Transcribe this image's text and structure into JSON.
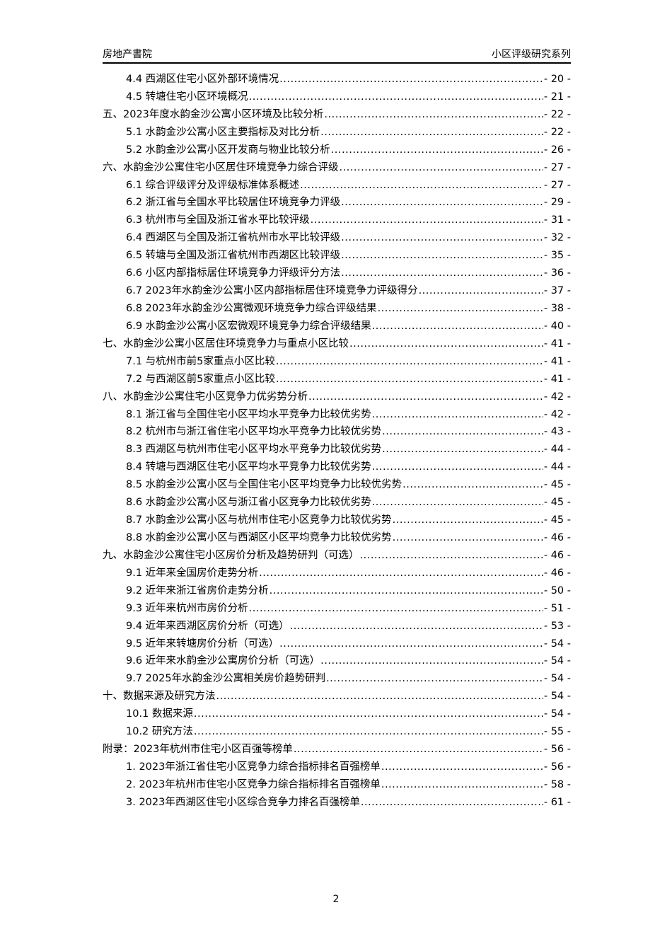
{
  "header": {
    "left": "房地产書院",
    "right": "小区评级研究系列"
  },
  "toc": [
    {
      "level": 2,
      "title": "4.4 西湖区住宅小区外部环境情况",
      "page": "- 20 -"
    },
    {
      "level": 2,
      "title": "4.5 转塘住宅小区环境概况",
      "page": "- 21 -"
    },
    {
      "level": 1,
      "title": "五、2023年度水韵金沙公寓小区环境及比较分析",
      "page": "- 22 -"
    },
    {
      "level": 2,
      "title": "5.1 水韵金沙公寓小区主要指标及对比分析",
      "page": "- 22 -"
    },
    {
      "level": 2,
      "title": "5.2 水韵金沙公寓小区开发商与物业比较分析",
      "page": "- 26 -"
    },
    {
      "level": 1,
      "title": "六、水韵金沙公寓住宅小区居住环境竞争力综合评级",
      "page": "- 27 -"
    },
    {
      "level": 2,
      "title": "6.1 综合评级评分及评级标准体系概述",
      "page": "- 27 -"
    },
    {
      "level": 2,
      "title": "6.2 浙江省与全国水平比较居住环境竞争力评级",
      "page": "- 29 -"
    },
    {
      "level": 2,
      "title": "6.3 杭州市与全国及浙江省水平比较评级",
      "page": "- 31 -"
    },
    {
      "level": 2,
      "title": "6.4 西湖区与全国及浙江省杭州市水平比较评级",
      "page": "- 32 -"
    },
    {
      "level": 2,
      "title": "6.5 转塘与全国及浙江省杭州市西湖区比较评级",
      "page": "- 35 -"
    },
    {
      "level": 2,
      "title": "6.6 小区内部指标居住环境竞争力评级评分方法",
      "page": "- 36 -"
    },
    {
      "level": 2,
      "title": "6.7 2023年水韵金沙公寓小区内部指标居住环境竞争力评级得分",
      "page": "- 37 -"
    },
    {
      "level": 2,
      "title": "6.8 2023年水韵金沙公寓微观环境竞争力综合评级结果",
      "page": "- 38 -"
    },
    {
      "level": 2,
      "title": "6.9 水韵金沙公寓小区宏微观环境竞争力综合评级结果",
      "page": "- 40 -"
    },
    {
      "level": 1,
      "title": "七、水韵金沙公寓小区居住环境竞争力与重点小区比较",
      "page": "- 41 -"
    },
    {
      "level": 2,
      "title": "7.1 与杭州市前5家重点小区比较",
      "page": "- 41 -"
    },
    {
      "level": 2,
      "title": "7.2 与西湖区前5家重点小区比较",
      "page": "- 41 -"
    },
    {
      "level": 1,
      "title": "八、水韵金沙公寓住宅小区竞争力优劣势分析",
      "page": "- 42 -"
    },
    {
      "level": 2,
      "title": "8.1 浙江省与全国住宅小区平均水平竞争力比较优劣势",
      "page": "- 42 -"
    },
    {
      "level": 2,
      "title": "8.2 杭州市与浙江省住宅小区平均水平竞争力比较优劣势",
      "page": "- 43 -"
    },
    {
      "level": 2,
      "title": "8.3 西湖区与杭州市住宅小区平均水平竞争力比较优劣势",
      "page": "- 44 -"
    },
    {
      "level": 2,
      "title": "8.4 转塘与西湖区住宅小区平均水平竞争力比较优劣势",
      "page": "- 44 -"
    },
    {
      "level": 2,
      "title": "8.5 水韵金沙公寓小区与全国住宅小区平均竞争力比较优劣势",
      "page": "- 45 -"
    },
    {
      "level": 2,
      "title": "8.6 水韵金沙公寓小区与浙江省小区竞争力比较优劣势",
      "page": "- 45 -"
    },
    {
      "level": 2,
      "title": "8.7 水韵金沙公寓小区与杭州市住宅小区竞争力比较优劣势",
      "page": "- 45 -"
    },
    {
      "level": 2,
      "title": "8.8 水韵金沙公寓小区与西湖区小区平均竞争力比较优劣势",
      "page": "- 46 -"
    },
    {
      "level": 1,
      "title": "九、水韵金沙公寓住宅小区房价分析及趋势研判（可选）",
      "page": "- 46 -"
    },
    {
      "level": 2,
      "title": "9.1 近年来全国房价走势分析",
      "page": "- 46 -"
    },
    {
      "level": 2,
      "title": "9.2 近年来浙江省房价走势分析",
      "page": "- 50 -"
    },
    {
      "level": 2,
      "title": "9.3 近年来杭州市房价分析",
      "page": "- 51 -"
    },
    {
      "level": 2,
      "title": "9.4 近年来西湖区房价分析（可选）",
      "page": "- 53 -"
    },
    {
      "level": 2,
      "title": "9.5 近年来转塘房价分析（可选）",
      "page": "- 54 -"
    },
    {
      "level": 2,
      "title": "9.6 近年来水韵金沙公寓房价分析（可选）",
      "page": "- 54 -"
    },
    {
      "level": 2,
      "title": "9.7 2025年水韵金沙公寓相关房价趋势研判",
      "page": "- 54 -"
    },
    {
      "level": 1,
      "title": "十、数据来源及研究方法",
      "page": "- 54 -"
    },
    {
      "level": 2,
      "title": "10.1 数据来源",
      "page": "- 54 -"
    },
    {
      "level": 2,
      "title": "10.2 研究方法",
      "page": "- 55 -"
    },
    {
      "level": 1,
      "title": "附录：2023年杭州市住宅小区百强等榜单",
      "page": "- 56 -"
    },
    {
      "level": 2,
      "title": "1. 2023年浙江省住宅小区竞争力综合指标排名百强榜单",
      "page": "- 56 -"
    },
    {
      "level": 2,
      "title": "2. 2023年杭州市住宅小区竞争力综合指标排名百强榜单",
      "page": "- 58 -"
    },
    {
      "level": 2,
      "title": "3. 2023年西湖区住宅小区综合竞争力排名百强榜单",
      "page": "- 61 -"
    }
  ],
  "footer": {
    "page_number": "2"
  }
}
